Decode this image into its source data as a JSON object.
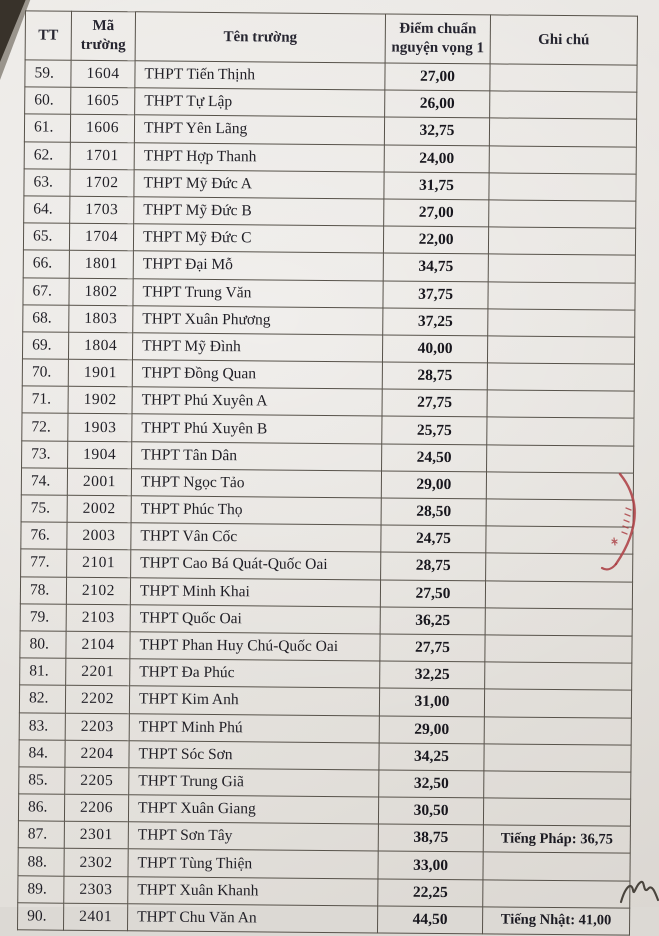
{
  "document": {
    "columns": [
      "TT",
      "Mã trường",
      "Tên trường",
      "Điểm chuẩn nguyện vọng 1",
      "Ghi chú"
    ],
    "rows": [
      [
        "59.",
        "1604",
        "THPT Tiến Thịnh",
        "27,00",
        ""
      ],
      [
        "60.",
        "1605",
        "THPT Tự Lập",
        "26,00",
        ""
      ],
      [
        "61.",
        "1606",
        "THPT Yên Lãng",
        "32,75",
        ""
      ],
      [
        "62.",
        "1701",
        "THPT Hợp Thanh",
        "24,00",
        ""
      ],
      [
        "63.",
        "1702",
        "THPT Mỹ Đức A",
        "31,75",
        ""
      ],
      [
        "64.",
        "1703",
        "THPT Mỹ Đức B",
        "27,00",
        ""
      ],
      [
        "65.",
        "1704",
        "THPT Mỹ Đức C",
        "22,00",
        ""
      ],
      [
        "66.",
        "1801",
        "THPT Đại Mỗ",
        "34,75",
        ""
      ],
      [
        "67.",
        "1802",
        "THPT Trung Văn",
        "37,75",
        ""
      ],
      [
        "68.",
        "1803",
        "THPT Xuân Phương",
        "37,25",
        ""
      ],
      [
        "69.",
        "1804",
        "THPT Mỹ Đình",
        "40,00",
        ""
      ],
      [
        "70.",
        "1901",
        "THPT Đồng Quan",
        "28,75",
        ""
      ],
      [
        "71.",
        "1902",
        "THPT Phú Xuyên A",
        "27,75",
        ""
      ],
      [
        "72.",
        "1903",
        "THPT Phú Xuyên B",
        "25,75",
        ""
      ],
      [
        "73.",
        "1904",
        "THPT Tân Dân",
        "24,50",
        ""
      ],
      [
        "74.",
        "2001",
        "THPT Ngọc Tảo",
        "29,00",
        ""
      ],
      [
        "75.",
        "2002",
        "THPT Phúc Thọ",
        "28,50",
        ""
      ],
      [
        "76.",
        "2003",
        "THPT Vân Cốc",
        "24,75",
        ""
      ],
      [
        "77.",
        "2101",
        "THPT Cao Bá Quát-Quốc Oai",
        "28,75",
        ""
      ],
      [
        "78.",
        "2102",
        "THPT Minh Khai",
        "27,50",
        ""
      ],
      [
        "79.",
        "2103",
        "THPT Quốc Oai",
        "36,25",
        ""
      ],
      [
        "80.",
        "2104",
        "THPT Phan Huy Chú-Quốc Oai",
        "27,75",
        ""
      ],
      [
        "81.",
        "2201",
        "THPT Đa Phúc",
        "32,25",
        ""
      ],
      [
        "82.",
        "2202",
        "THPT Kim Anh",
        "31,00",
        ""
      ],
      [
        "83.",
        "2203",
        "THPT Minh Phú",
        "29,00",
        ""
      ],
      [
        "84.",
        "2204",
        "THPT Sóc Sơn",
        "34,25",
        ""
      ],
      [
        "85.",
        "2205",
        "THPT Trung Giã",
        "32,50",
        ""
      ],
      [
        "86.",
        "2206",
        "THPT Xuân Giang",
        "30,50",
        ""
      ],
      [
        "87.",
        "2301",
        "THPT Sơn Tây",
        "38,75",
        "Tiếng Pháp: 36,75"
      ],
      [
        "88.",
        "2302",
        "THPT Tùng Thiện",
        "33,00",
        ""
      ],
      [
        "89.",
        "2303",
        "THPT Xuân Khanh",
        "22,25",
        ""
      ],
      [
        "90.",
        "2401",
        "THPT Chu Văn An",
        "44,50",
        "Tiếng Nhật: 41,00"
      ]
    ]
  },
  "colors": {
    "paper": "#e8e5e1",
    "ink": "#201f26",
    "table_border": "#57524a",
    "pen_red": "#a93a3f",
    "photo_corner": "#38322a"
  },
  "annotations": {
    "red_pen_mark": "red-pen-annotation-mark",
    "handwriting_mark": "handwritten-initial-mark",
    "photo_corner": "photo-background-corner"
  }
}
